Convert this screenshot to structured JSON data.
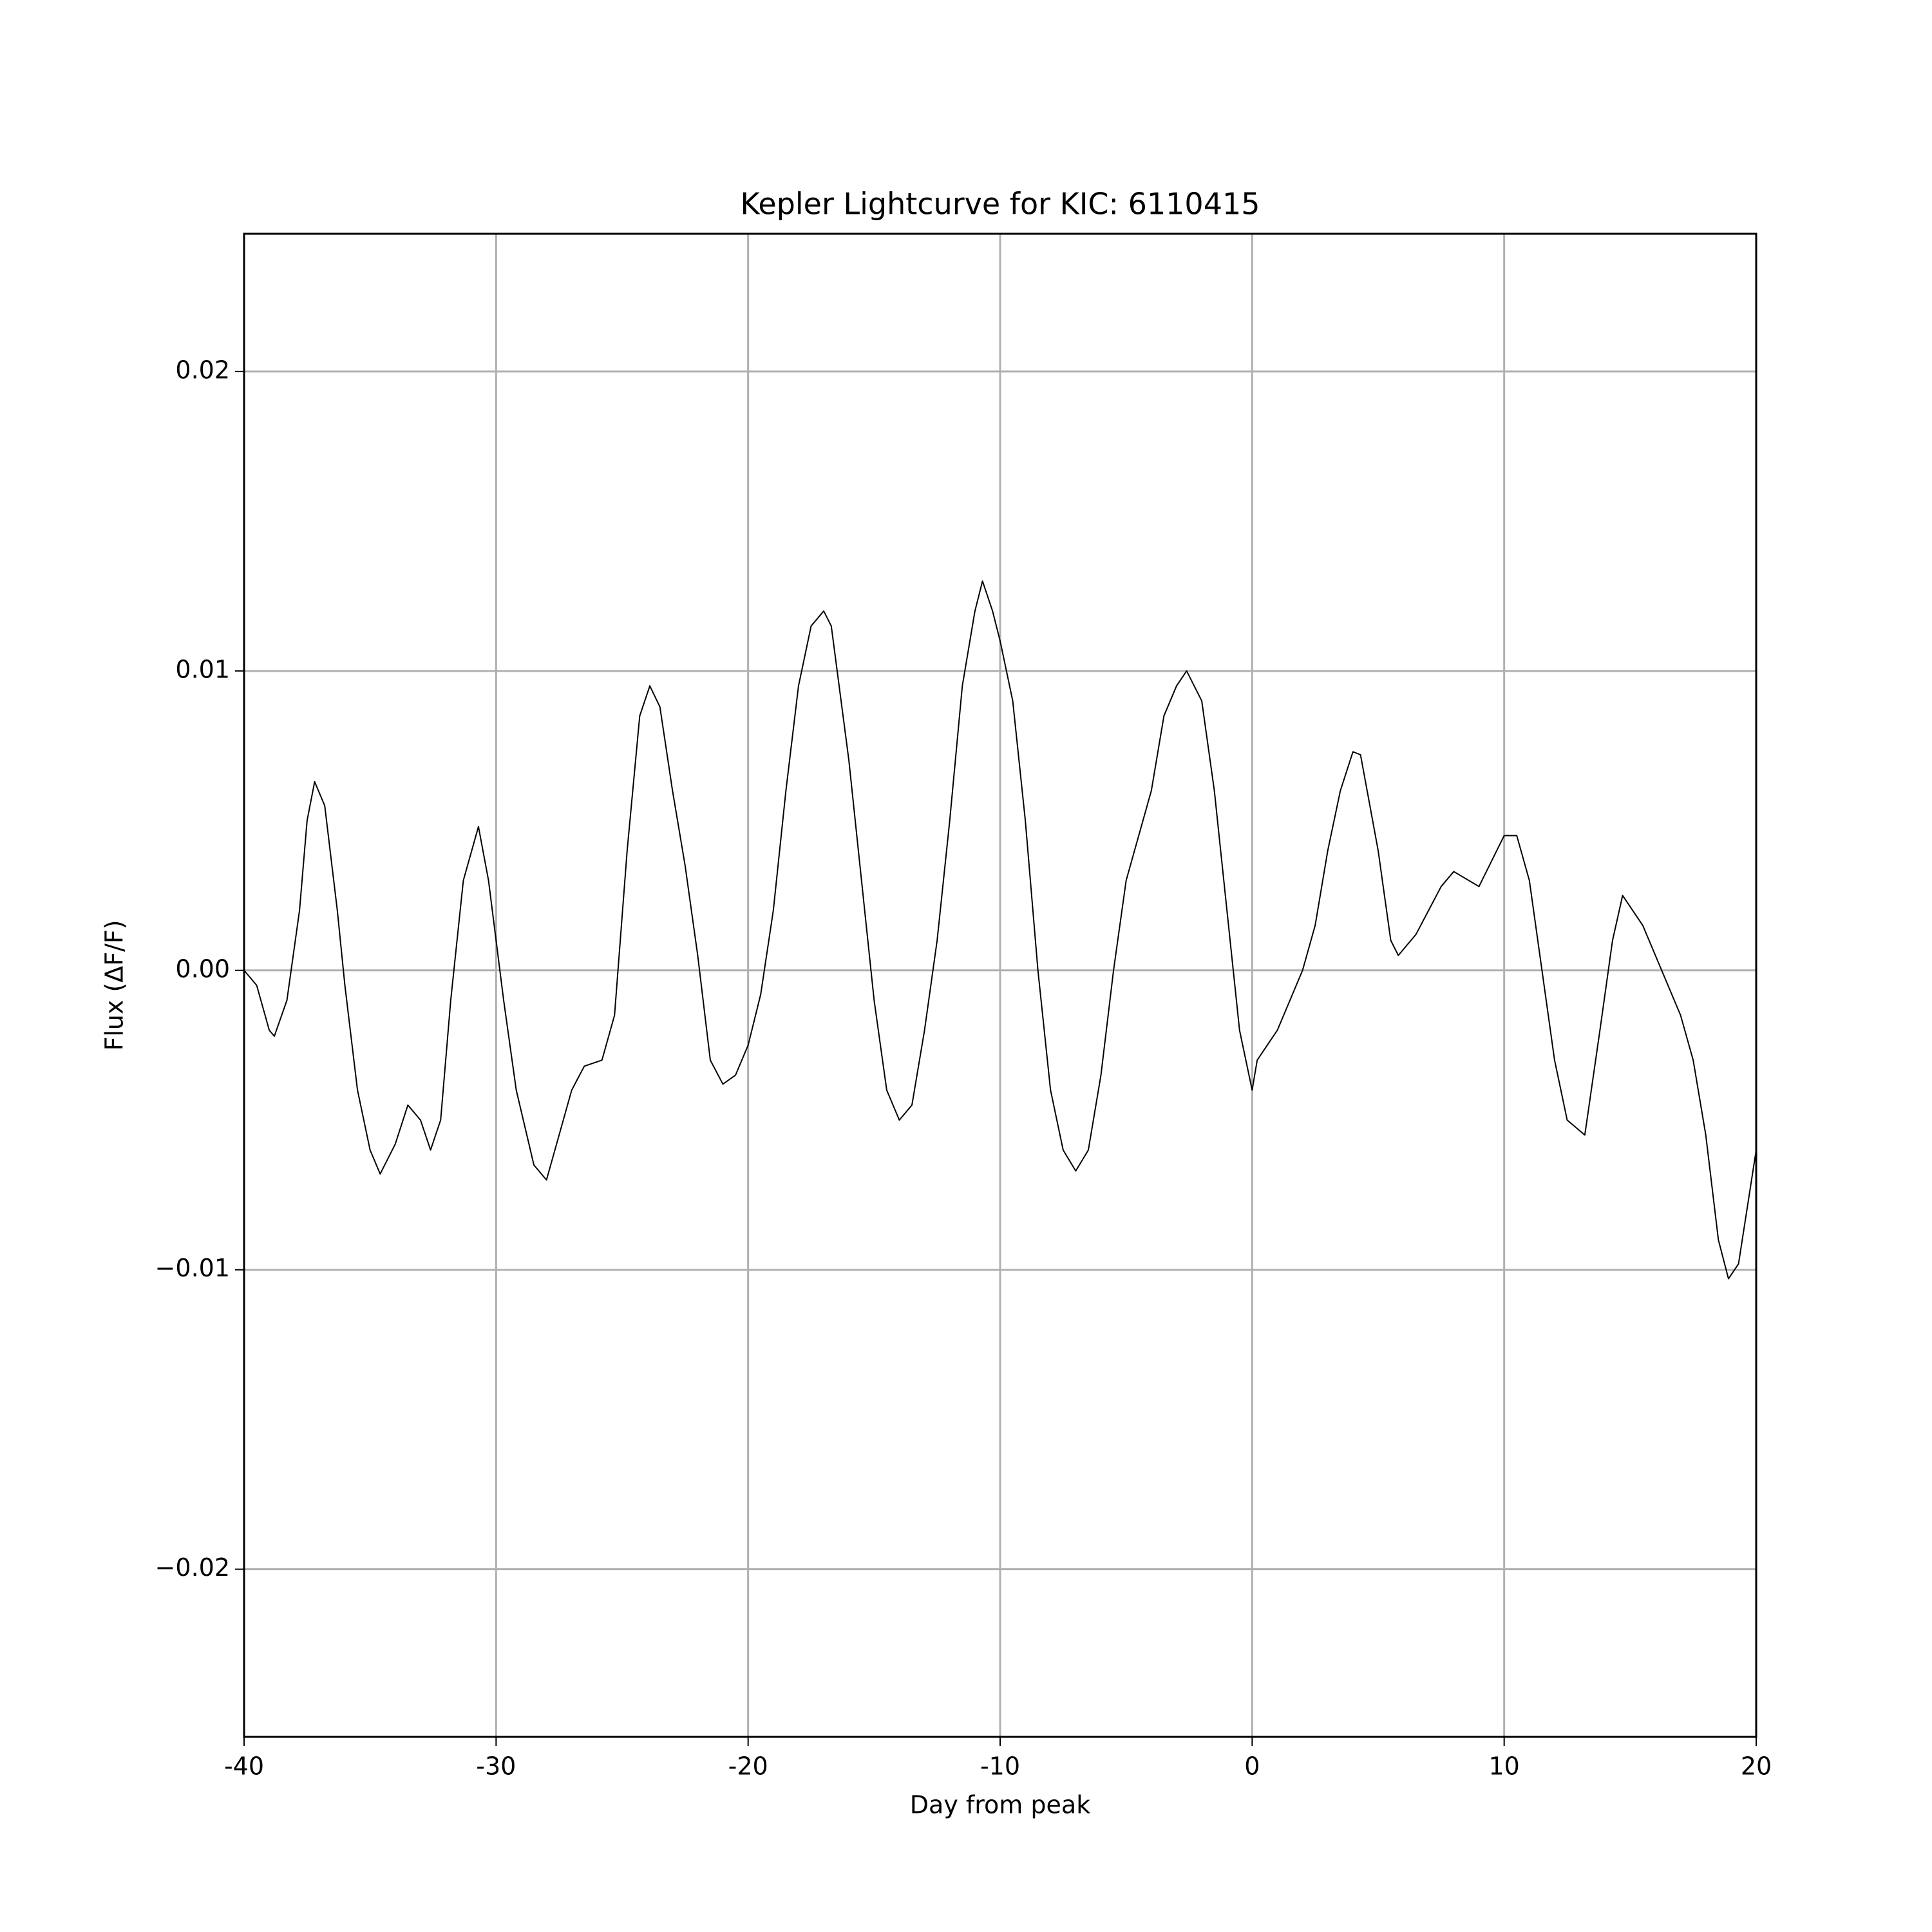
{
  "chart_data": {
    "type": "line",
    "title": "Kepler Lightcurve for KIC: 6110415",
    "x_label": "Day from peak",
    "y_label": "Flux (ΔF/F)",
    "color": "#000000",
    "grid": true,
    "xlim": [
      -40,
      20
    ],
    "xticks": [
      -40,
      -30,
      -20,
      -10,
      0,
      10,
      20
    ],
    "ylim": [
      -0.0256,
      0.0246
    ],
    "yticks": [
      {
        "value": -0.02,
        "label": "−0.02"
      },
      {
        "value": -0.01,
        "label": "−0.01"
      },
      {
        "value": 0,
        "label": "0.00"
      },
      0.01,
      0.02
    ],
    "x": [
      -40,
      -39.5,
      -39,
      -38.8,
      -38.3,
      -37.8,
      -37.5,
      -37.2,
      -36.8,
      -36.3,
      -36,
      -35.5,
      -35,
      -34.6,
      -34,
      -33.5,
      -33,
      -32.6,
      -32.2,
      -31.8,
      -31.3,
      -30.7,
      -30.3,
      -29.7,
      -29.2,
      -28.5,
      -28,
      -27.5,
      -27,
      -26.5,
      -25.8,
      -25.3,
      -24.8,
      -24.3,
      -23.9,
      -23.5,
      -23,
      -22.5,
      -22,
      -21.5,
      -21,
      -20.5,
      -20,
      -19.5,
      -19,
      -18.5,
      -18,
      -17.5,
      -17,
      -16.7,
      -16,
      -15.5,
      -15,
      -14.5,
      -14,
      -13.5,
      -13,
      -12.5,
      -12,
      -11.5,
      -11,
      -10.7,
      -10.3,
      -10,
      -9.5,
      -9,
      -8.5,
      -8,
      -7.5,
      -7,
      -6.5,
      -6,
      -5.5,
      -5,
      -4.5,
      -4,
      -3.5,
      -3,
      -2.6,
      -2,
      -1.5,
      -1,
      -0.5,
      0,
      0.2,
      1,
      2,
      2.5,
      3,
      3.5,
      4,
      4.3,
      5,
      5.5,
      5.8,
      6.5,
      7,
      7.5,
      8,
      9,
      10,
      10.5,
      11,
      11.5,
      12,
      12.5,
      13.2,
      13.8,
      14.3,
      14.7,
      15.5,
      16.5,
      17,
      17.5,
      18,
      18.5,
      18.9,
      19.3,
      20
    ],
    "values": [
      0.0,
      -0.0005,
      -0.002,
      -0.0022,
      -0.001,
      0.002,
      0.005,
      0.0063,
      0.0055,
      0.002,
      -0.0005,
      -0.004,
      -0.006,
      -0.0068,
      -0.0058,
      -0.0045,
      -0.005,
      -0.006,
      -0.005,
      -0.001,
      0.003,
      0.0048,
      0.003,
      -0.001,
      -0.004,
      -0.0065,
      -0.007,
      -0.0055,
      -0.004,
      -0.0032,
      -0.003,
      -0.0015,
      0.004,
      0.0085,
      0.0095,
      0.0088,
      0.006,
      0.0035,
      0.0005,
      -0.003,
      -0.0038,
      -0.0035,
      -0.0025,
      -0.0008,
      0.002,
      0.006,
      0.0095,
      0.0115,
      0.012,
      0.0115,
      0.007,
      0.003,
      -0.001,
      -0.004,
      -0.005,
      -0.0045,
      -0.002,
      0.001,
      0.005,
      0.0095,
      0.012,
      0.013,
      0.012,
      0.011,
      0.009,
      0.005,
      0.0,
      -0.004,
      -0.006,
      -0.0067,
      -0.006,
      -0.0035,
      0.0,
      0.003,
      0.0045,
      0.006,
      0.0085,
      0.0095,
      0.01,
      0.009,
      0.006,
      0.002,
      -0.002,
      -0.004,
      -0.003,
      -0.002,
      0.0,
      0.0015,
      0.004,
      0.006,
      0.0073,
      0.0072,
      0.004,
      0.001,
      0.0005,
      0.0012,
      0.002,
      0.0028,
      0.0033,
      0.0028,
      0.0045,
      0.0045,
      0.003,
      0.0,
      -0.003,
      -0.005,
      -0.0055,
      -0.002,
      0.001,
      0.0025,
      0.0015,
      -0.0005,
      -0.0015,
      -0.003,
      -0.0055,
      -0.009,
      -0.0103,
      -0.0098,
      -0.006
    ]
  }
}
